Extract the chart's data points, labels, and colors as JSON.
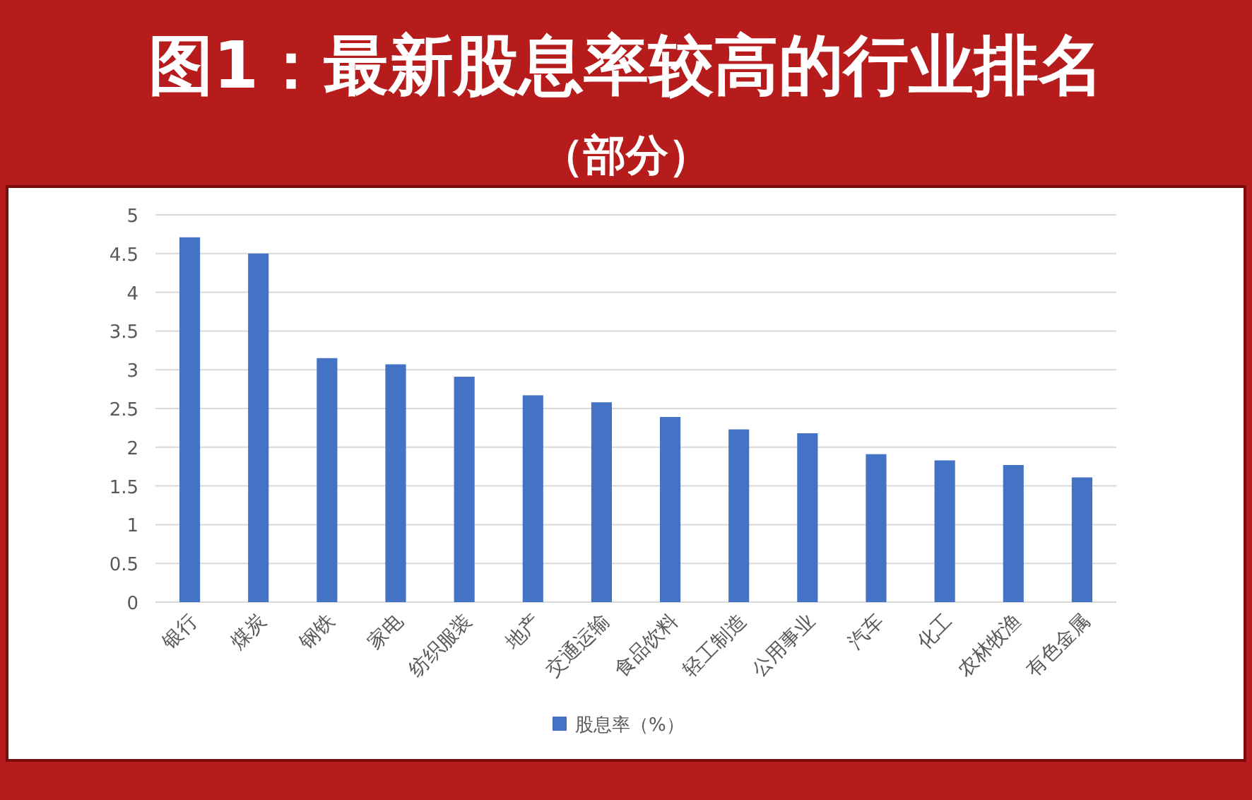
{
  "chart_data": {
    "type": "bar",
    "title": "图1：最新股息率较高的行业排名",
    "subtitle": "（部分）",
    "categories": [
      "银行",
      "煤炭",
      "钢铁",
      "家电",
      "纺织服装",
      "地产",
      "交通运输",
      "食品饮料",
      "轻工制造",
      "公用事业",
      "汽车",
      "化工",
      "农林牧渔",
      "有色金属"
    ],
    "series": [
      {
        "name": "股息率（%）",
        "color": "#4472c4",
        "values": [
          4.71,
          4.5,
          3.15,
          3.07,
          2.91,
          2.67,
          2.58,
          2.39,
          2.23,
          2.18,
          1.91,
          1.83,
          1.77,
          1.61
        ]
      }
    ],
    "ylim": [
      0,
      5
    ],
    "yticks": [
      0,
      0.5,
      1,
      1.5,
      2,
      2.5,
      3,
      3.5,
      4,
      4.5,
      5
    ],
    "grid": "y",
    "legend": "bottom"
  }
}
